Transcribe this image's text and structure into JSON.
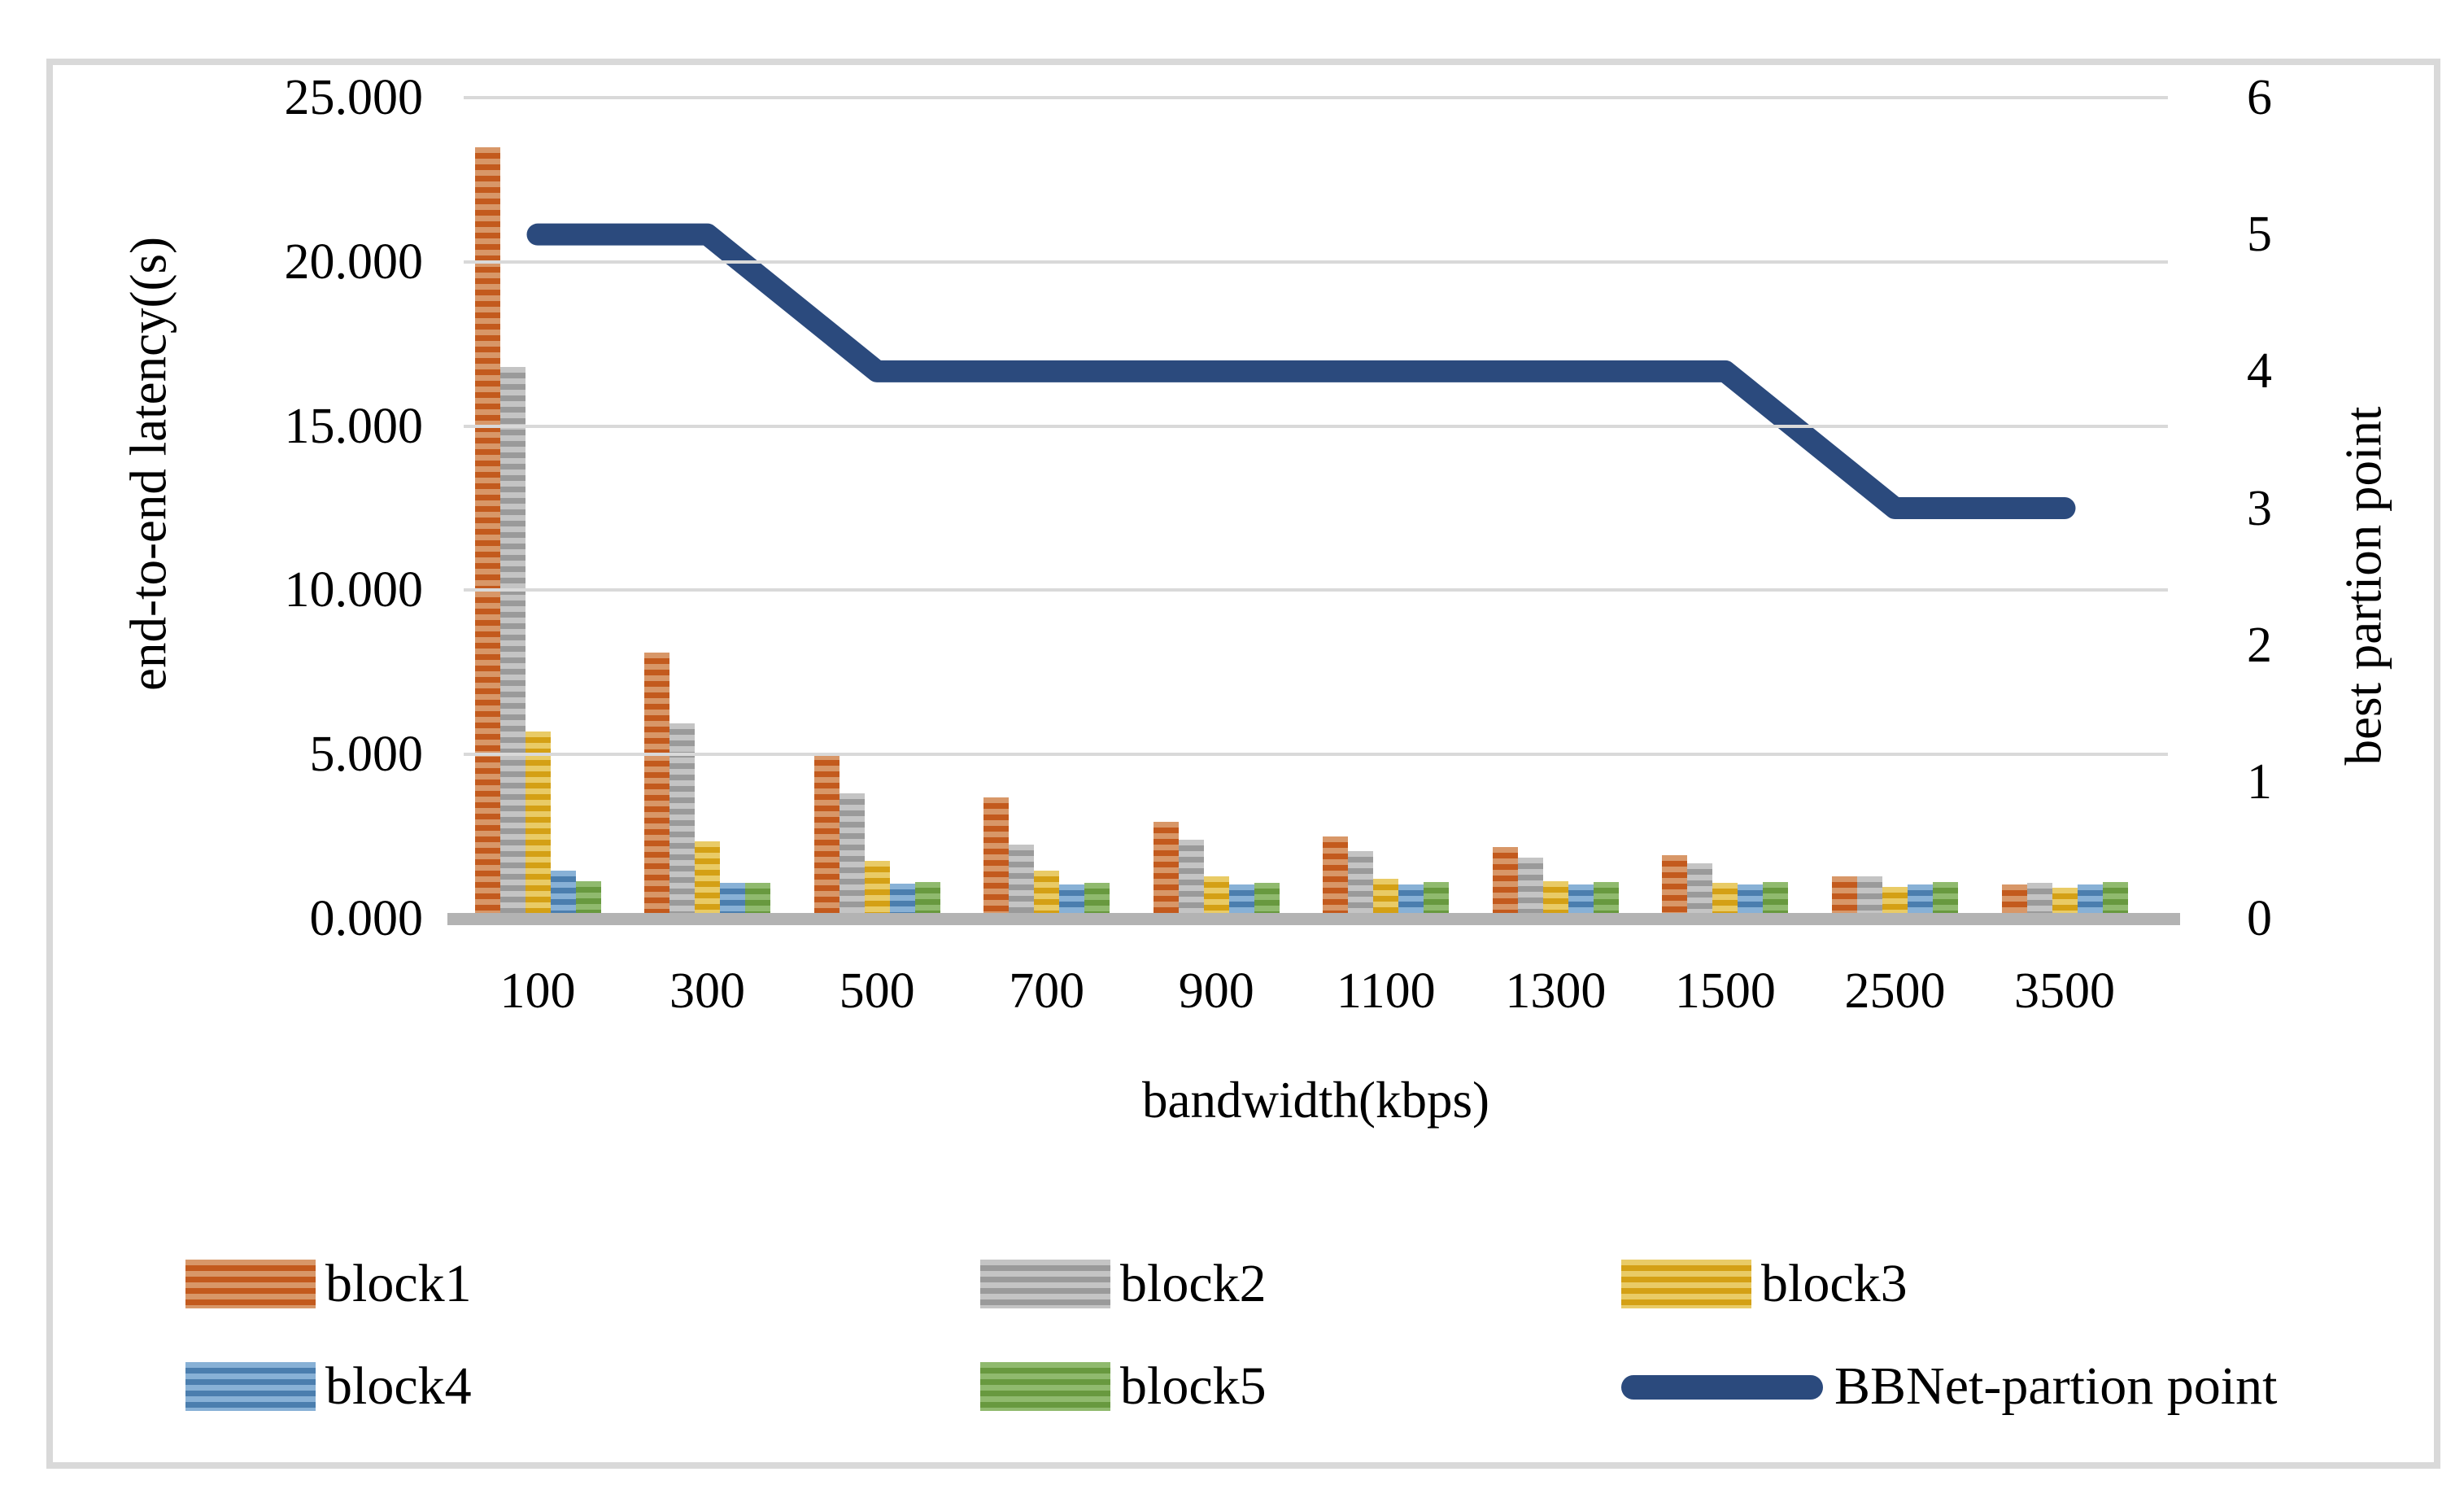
{
  "chart_data": {
    "type": "bar+line",
    "categories": [
      "100",
      "300",
      "500",
      "700",
      "900",
      "1100",
      "1300",
      "1500",
      "2500",
      "3500"
    ],
    "series": [
      {
        "name": "block1",
        "type": "bar",
        "axis": "left",
        "color": "#c35a1d",
        "color_light": "#d89768",
        "values": [
          23.5,
          8.1,
          5.0,
          3.7,
          2.95,
          2.5,
          2.17,
          1.93,
          1.28,
          1.04
        ]
      },
      {
        "name": "block2",
        "type": "bar",
        "axis": "left",
        "color": "#9a9a9a",
        "color_light": "#c4c4c4",
        "values": [
          16.8,
          5.95,
          3.81,
          2.25,
          2.4,
          2.05,
          1.86,
          1.69,
          1.3,
          1.08
        ]
      },
      {
        "name": "block3",
        "type": "bar",
        "axis": "left",
        "color": "#d4a015",
        "color_light": "#e9cb66",
        "values": [
          5.7,
          2.35,
          1.75,
          1.47,
          1.3,
          1.22,
          1.14,
          1.08,
          0.96,
          0.93
        ]
      },
      {
        "name": "block4",
        "type": "bar",
        "axis": "left",
        "color": "#4b7eae",
        "color_light": "#88b1d6",
        "values": [
          1.45,
          1.1,
          1.07,
          1.03,
          1.03,
          1.04,
          1.04,
          1.04,
          1.05,
          1.05
        ]
      },
      {
        "name": "block5",
        "type": "bar",
        "axis": "left",
        "color": "#68993f",
        "color_light": "#90ba6e",
        "values": [
          1.15,
          1.1,
          1.11,
          1.1,
          1.1,
          1.11,
          1.11,
          1.12,
          1.12,
          1.12
        ]
      },
      {
        "name": "BBNet-partion point",
        "type": "line",
        "axis": "right",
        "color": "#2b4a7d",
        "values": [
          5,
          5,
          4,
          4,
          4,
          4,
          4,
          4,
          3,
          3
        ]
      }
    ],
    "left_axis": {
      "label": "end-to-end latency((s)",
      "min": 0,
      "max": 25,
      "ticks": [
        "25.000",
        "20.000",
        "15.000",
        "10.000",
        "5.000",
        "0.000"
      ]
    },
    "right_axis": {
      "label": "best partion point",
      "min": 0,
      "max": 6,
      "ticks": [
        "6",
        "5",
        "4",
        "3",
        "2",
        "1",
        "0"
      ]
    },
    "xlabel": "bandwidth(kbps)",
    "grid": true,
    "legend_position": "bottom",
    "gridline_color": "#d9d9d9",
    "axis_line_color": "#b3b3b3"
  },
  "legend": {
    "items": [
      "block1",
      "block2",
      "block3",
      "block4",
      "block5",
      "BBNet-partion point"
    ]
  }
}
